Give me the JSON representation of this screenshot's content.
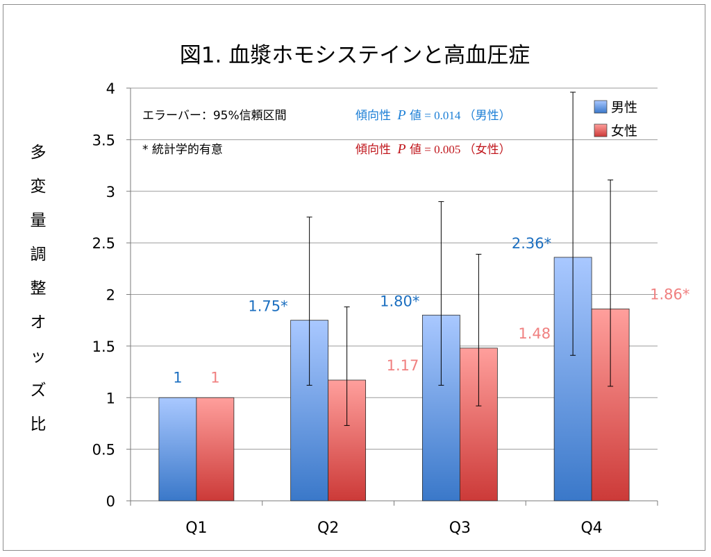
{
  "chart_data": {
    "type": "bar",
    "title": "図1. 血漿ホモシステインと高血圧症",
    "xlabel": "",
    "ylabel": "多変量調整オッズ比",
    "ylim": [
      0,
      4
    ],
    "yticks": [
      "0",
      "0.5",
      "1",
      "1.5",
      "2",
      "2.5",
      "3",
      "3.5",
      "4"
    ],
    "ytick_values": [
      0,
      0.5,
      1,
      1.5,
      2,
      2.5,
      3,
      3.5,
      4
    ],
    "grid": true,
    "categories": [
      "Q1",
      "Q2",
      "Q3",
      "Q4"
    ],
    "series": [
      {
        "name": "男性",
        "values": [
          1,
          1.75,
          1.8,
          2.36
        ],
        "labels": [
          "1",
          "1.75*",
          "1.80*",
          "2.36*"
        ],
        "ci_low": [
          1,
          1.12,
          1.12,
          1.41
        ],
        "ci_high": [
          1,
          2.75,
          2.9,
          3.96
        ],
        "color_top": "#a9c8ff",
        "color_bottom": "#3a78c9",
        "label_color": "#1c6fc0"
      },
      {
        "name": "女性",
        "values": [
          1,
          1.17,
          1.48,
          1.86
        ],
        "labels": [
          "1",
          "1.17",
          "1.48",
          "1.86*"
        ],
        "ci_low": [
          1,
          0.73,
          0.92,
          1.11
        ],
        "ci_high": [
          1,
          1.88,
          2.39,
          3.11
        ],
        "color_top": "#ff9f9c",
        "color_bottom": "#cc3a38",
        "label_color": "#f08080"
      }
    ],
    "annotations": {
      "error_bar_note": "エラーバー：95%信頼区間",
      "significance_note": "* 統計学的有意",
      "trend_men": {
        "prefix": "傾向性",
        "p": "P",
        "suffix": " 値 = 0.014 （男性）",
        "color": "#1c7fd6"
      },
      "trend_women": {
        "prefix": "傾向性",
        "p": "P",
        "suffix": " 値 = 0.005 （女性）",
        "color": "#c0161c"
      }
    },
    "legend": {
      "position": "top-right"
    }
  }
}
